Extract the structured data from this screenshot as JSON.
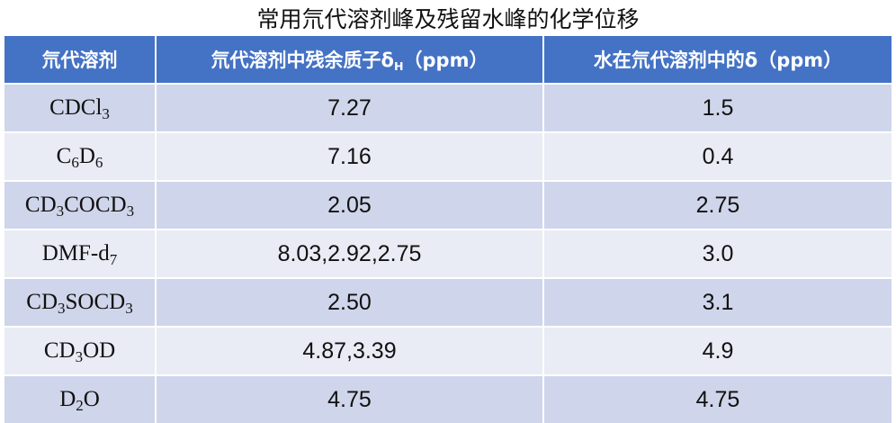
{
  "title": "常用氘代溶剂峰及残留水峰的化学位移",
  "headers": {
    "col1": "氘代溶剂",
    "col2_main": "氘代溶剂中残余质子δ",
    "col2_sub": "H",
    "col2_unit": "（ppm）",
    "col3": "水在氘代溶剂中的δ（ppm）"
  },
  "rows": [
    {
      "solvent": [
        {
          "t": "CDCl"
        },
        {
          "s": "3"
        }
      ],
      "residual": "7.27",
      "water": "1.5"
    },
    {
      "solvent": [
        {
          "t": "C"
        },
        {
          "s": "6"
        },
        {
          "t": "D"
        },
        {
          "s": "6"
        }
      ],
      "residual": "7.16",
      "water": "0.4"
    },
    {
      "solvent": [
        {
          "t": "CD"
        },
        {
          "s": "3"
        },
        {
          "t": "COCD"
        },
        {
          "s": "3"
        }
      ],
      "residual": "2.05",
      "water": "2.75"
    },
    {
      "solvent": [
        {
          "t": "DMF-d"
        },
        {
          "s": "7"
        }
      ],
      "residual": "8.03,2.92,2.75",
      "water": "3.0"
    },
    {
      "solvent": [
        {
          "t": "CD"
        },
        {
          "s": "3"
        },
        {
          "t": "SOCD"
        },
        {
          "s": "3"
        }
      ],
      "residual": "2.50",
      "water": "3.1"
    },
    {
      "solvent": [
        {
          "t": "CD"
        },
        {
          "s": "3"
        },
        {
          "t": "OD"
        }
      ],
      "residual": "4.87,3.39",
      "water": "4.9"
    },
    {
      "solvent": [
        {
          "t": "D"
        },
        {
          "s": "2"
        },
        {
          "t": "O"
        }
      ],
      "residual": "4.75",
      "water": "4.75"
    }
  ]
}
